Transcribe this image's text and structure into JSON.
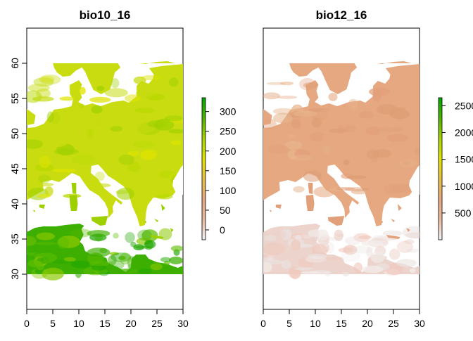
{
  "panels": [
    {
      "id": "bio10",
      "title": "bio10_16",
      "x_ticks": [
        "0",
        "5",
        "10",
        "15",
        "20",
        "25",
        "30"
      ],
      "y_ticks": [
        "30",
        "35",
        "40",
        "45",
        "50",
        "55",
        "60"
      ],
      "xlim": [
        0,
        30
      ],
      "ylim": [
        25,
        65
      ],
      "colorbar": {
        "ticks": [
          "0",
          "50",
          "100",
          "150",
          "200",
          "250",
          "300"
        ],
        "range": [
          -25,
          335
        ],
        "tick_values": [
          0,
          50,
          100,
          150,
          200,
          250,
          300
        ]
      },
      "land_colors": [
        "#c8dc10",
        "#9ed000",
        "#b9d800",
        "#dfe400"
      ],
      "africa_colors": [
        "#1fa600",
        "#3caf00",
        "#5bbc00",
        "#8bc800"
      ]
    },
    {
      "id": "bio12",
      "title": "bio12_16",
      "x_ticks": [
        "0",
        "5",
        "10",
        "15",
        "20",
        "25",
        "30"
      ],
      "y_ticks": [],
      "xlim": [
        0,
        30
      ],
      "ylim": [
        25,
        65
      ],
      "colorbar": {
        "ticks": [
          "500",
          "1000",
          "1500",
          "2000",
          "2500"
        ],
        "range": [
          0,
          2650
        ],
        "tick_values": [
          500,
          1000,
          1500,
          2000,
          2500
        ]
      },
      "land_colors": [
        "#e5a880",
        "#e2a07a",
        "#e8b48c",
        "#dc9c74"
      ],
      "africa_colors": [
        "#ebe4e2",
        "#ecd3cc",
        "#f0c8bc",
        "#f2ecea"
      ]
    }
  ],
  "colorbar_gradient": [
    "#f2f2f2",
    "#e9b8a0",
    "#e6a87c",
    "#e7c040",
    "#dfe400",
    "#a6d400",
    "#4db200",
    "#00a600"
  ]
}
